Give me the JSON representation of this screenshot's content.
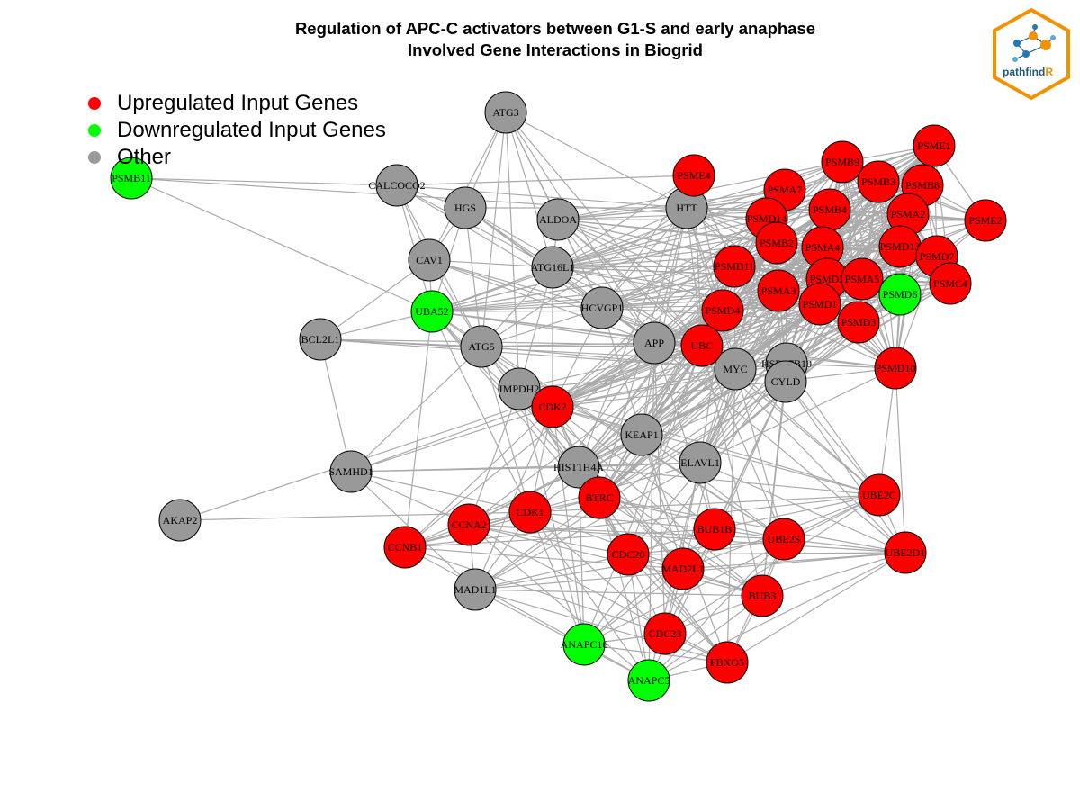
{
  "title": {
    "line1": "Regulation of APC-C activators between G1-S and early anaphase",
    "line2": "Involved Gene Interactions in Biogrid"
  },
  "legend": [
    {
      "label": "Upregulated Input Genes",
      "color": "#ff0000"
    },
    {
      "label": "Downregulated Input Genes",
      "color": "#00ff00"
    },
    {
      "label": "Other",
      "color": "#999999"
    }
  ],
  "logo": {
    "text_main": "pathfind",
    "text_accent": "R",
    "border_color": "#f39200",
    "text_color": "#1f5b7a"
  },
  "node_colors": {
    "up": "#ff0000",
    "down": "#00ff00",
    "other": "#999999"
  },
  "edge_color": "#aaaaaa",
  "nodes": [
    {
      "id": "ATG3",
      "type": "other"
    },
    {
      "id": "PSMB11",
      "type": "down"
    },
    {
      "id": "CALCOCO2",
      "type": "other"
    },
    {
      "id": "HGS",
      "type": "other"
    },
    {
      "id": "ALDOA",
      "type": "other"
    },
    {
      "id": "HTT",
      "type": "other"
    },
    {
      "id": "CAV1",
      "type": "other"
    },
    {
      "id": "ATG16L1",
      "type": "other"
    },
    {
      "id": "UBA52",
      "type": "down"
    },
    {
      "id": "HCVGP1",
      "type": "other"
    },
    {
      "id": "BCL2L1",
      "type": "other"
    },
    {
      "id": "ATG5",
      "type": "other"
    },
    {
      "id": "APP",
      "type": "other"
    },
    {
      "id": "IMPDH2",
      "type": "other"
    },
    {
      "id": "MYC",
      "type": "other"
    },
    {
      "id": "HSD17B10",
      "type": "other"
    },
    {
      "id": "CYLD",
      "type": "other"
    },
    {
      "id": "KEAP1",
      "type": "other"
    },
    {
      "id": "HIST1H4A",
      "type": "other"
    },
    {
      "id": "ELAVL1",
      "type": "other"
    },
    {
      "id": "SAMHD1",
      "type": "other"
    },
    {
      "id": "AKAP2",
      "type": "other"
    },
    {
      "id": "MAD1L1",
      "type": "other"
    },
    {
      "id": "PSME4",
      "type": "up"
    },
    {
      "id": "PSMB9",
      "type": "up"
    },
    {
      "id": "PSME1",
      "type": "up"
    },
    {
      "id": "PSMA7",
      "type": "up"
    },
    {
      "id": "PSMB3",
      "type": "up"
    },
    {
      "id": "PSMB8",
      "type": "up"
    },
    {
      "id": "PSMD14",
      "type": "up"
    },
    {
      "id": "PSMB4",
      "type": "up"
    },
    {
      "id": "PSMA2",
      "type": "up"
    },
    {
      "id": "PSME2",
      "type": "up"
    },
    {
      "id": "PSMB2",
      "type": "up"
    },
    {
      "id": "PSMA4",
      "type": "up"
    },
    {
      "id": "PSMD13",
      "type": "up"
    },
    {
      "id": "PSMD7",
      "type": "up"
    },
    {
      "id": "PSMD11",
      "type": "up"
    },
    {
      "id": "PSMD2",
      "type": "up"
    },
    {
      "id": "PSMA5",
      "type": "up"
    },
    {
      "id": "PSMD6",
      "type": "down"
    },
    {
      "id": "PSMC4",
      "type": "up"
    },
    {
      "id": "PSMA3",
      "type": "up"
    },
    {
      "id": "PSMD1",
      "type": "up"
    },
    {
      "id": "PSMD4",
      "type": "up"
    },
    {
      "id": "PSMD3",
      "type": "up"
    },
    {
      "id": "UBC",
      "type": "up"
    },
    {
      "id": "PSMD10",
      "type": "up"
    },
    {
      "id": "CDK2",
      "type": "up"
    },
    {
      "id": "BTRC",
      "type": "up"
    },
    {
      "id": "CDK1",
      "type": "up"
    },
    {
      "id": "CCNA2",
      "type": "up"
    },
    {
      "id": "CCNB1",
      "type": "up"
    },
    {
      "id": "CDC20",
      "type": "up"
    },
    {
      "id": "BUB1B",
      "type": "up"
    },
    {
      "id": "UBE2S",
      "type": "up"
    },
    {
      "id": "UBE2C",
      "type": "up"
    },
    {
      "id": "UBE2D1",
      "type": "up"
    },
    {
      "id": "MAD2L1",
      "type": "up"
    },
    {
      "id": "BUB3",
      "type": "up"
    },
    {
      "id": "CDC23",
      "type": "up"
    },
    {
      "id": "FBXO5",
      "type": "up"
    },
    {
      "id": "ANAPC16",
      "type": "down"
    },
    {
      "id": "ANAPC5",
      "type": "down"
    }
  ]
}
